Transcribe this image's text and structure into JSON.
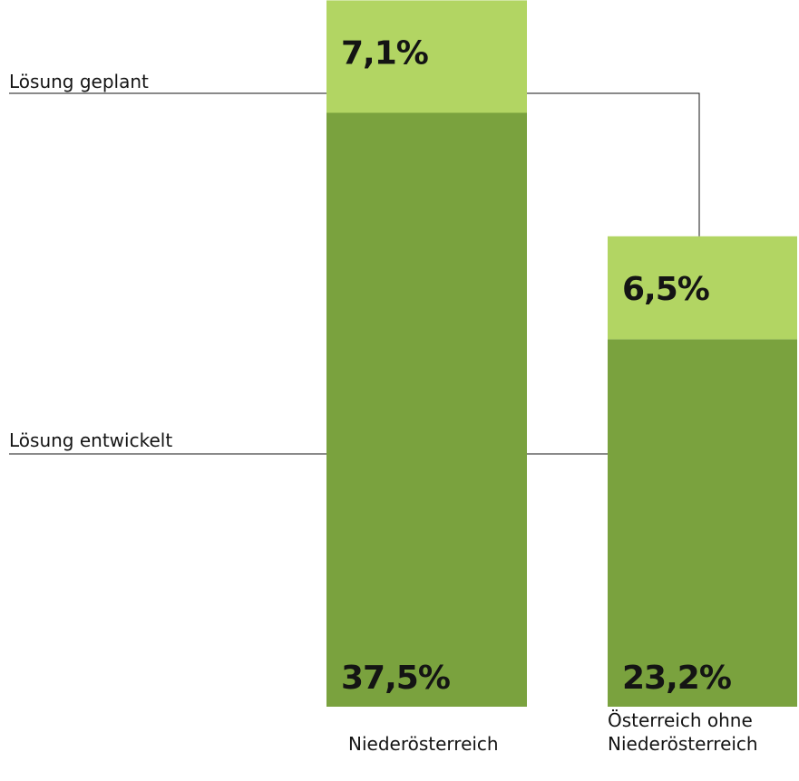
{
  "chart_data": {
    "type": "bar",
    "stacked": true,
    "categories": [
      [
        "Niederösterreich"
      ],
      [
        "Österreich ohne",
        "Niederösterreich"
      ]
    ],
    "series": [
      {
        "name": "Lösung entwickelt",
        "values": [
          37.5,
          23.2
        ],
        "labels": [
          "37,5%",
          "23,2%"
        ],
        "color": "#7aa23e"
      },
      {
        "name": "Lösung geplant",
        "values": [
          7.1,
          6.5
        ],
        "labels": [
          "7,1%",
          "6,5%"
        ],
        "color": "#b2d563"
      }
    ],
    "ylim": [
      0,
      44.6
    ],
    "grid": false,
    "legend": "left, connected by lines"
  }
}
